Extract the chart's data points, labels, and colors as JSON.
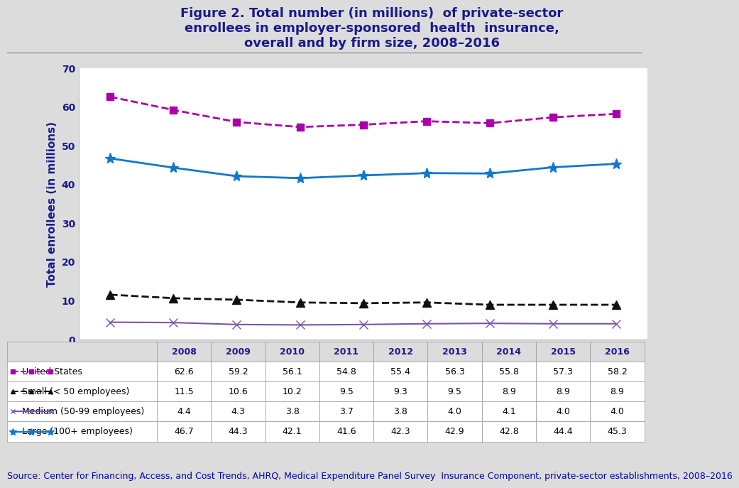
{
  "title_line1": "Figure 2. Total number (in millions)  of private-sector",
  "title_line2": "enrollees in employer-sponsored  health  insurance,",
  "title_line3": "overall and by firm size, 2008–2016",
  "ylabel": "Total enrollees (in millions)",
  "source": "Source: Center for Financing, Access, and Cost Trends, AHRQ, Medical Expenditure Panel Survey  Insurance Component, private-sector establishments, 2008–2016",
  "years": [
    2008,
    2009,
    2010,
    2011,
    2012,
    2013,
    2014,
    2015,
    2016
  ],
  "series": [
    {
      "label": "United States",
      "values": [
        62.6,
        59.2,
        56.1,
        54.8,
        55.4,
        56.3,
        55.8,
        57.3,
        58.2
      ],
      "color": "#AA00AA",
      "linestyle": "--",
      "marker": "s",
      "markersize": 7,
      "linewidth": 2.0,
      "markerfacecolor": "#AA00AA"
    },
    {
      "label": "Small (< 50 employees)",
      "values": [
        11.5,
        10.6,
        10.2,
        9.5,
        9.3,
        9.5,
        8.9,
        8.9,
        8.9
      ],
      "color": "#111111",
      "linestyle": "--",
      "marker": "^",
      "markersize": 8,
      "linewidth": 2.0,
      "markerfacecolor": "#111111"
    },
    {
      "label": "Medium (50-99 employees)",
      "values": [
        4.4,
        4.3,
        3.8,
        3.7,
        3.8,
        4.0,
        4.1,
        4.0,
        4.0
      ],
      "color": "#7755AA",
      "linestyle": "-",
      "marker": "x",
      "markersize": 8,
      "linewidth": 1.5,
      "markerfacecolor": "#7755AA"
    },
    {
      "label": "Large (100+ employees)",
      "values": [
        46.7,
        44.3,
        42.1,
        41.6,
        42.3,
        42.9,
        42.8,
        44.4,
        45.3
      ],
      "color": "#1177CC",
      "linestyle": "-",
      "marker": "*",
      "markersize": 11,
      "linewidth": 2.0,
      "markerfacecolor": "#1177CC"
    }
  ],
  "ylim": [
    0,
    70
  ],
  "yticks": [
    0,
    10,
    20,
    30,
    40,
    50,
    60,
    70
  ],
  "background_color": "#DCDCDC",
  "plot_background": "#FFFFFF",
  "title_color": "#1A1A8C",
  "ylabel_color": "#1A1A8C",
  "axis_label_color": "#1A1A8C",
  "source_color": "#0000BB",
  "title_fontsize": 13,
  "ylabel_fontsize": 11,
  "tick_fontsize": 10,
  "source_fontsize": 9,
  "table_fontsize": 9
}
